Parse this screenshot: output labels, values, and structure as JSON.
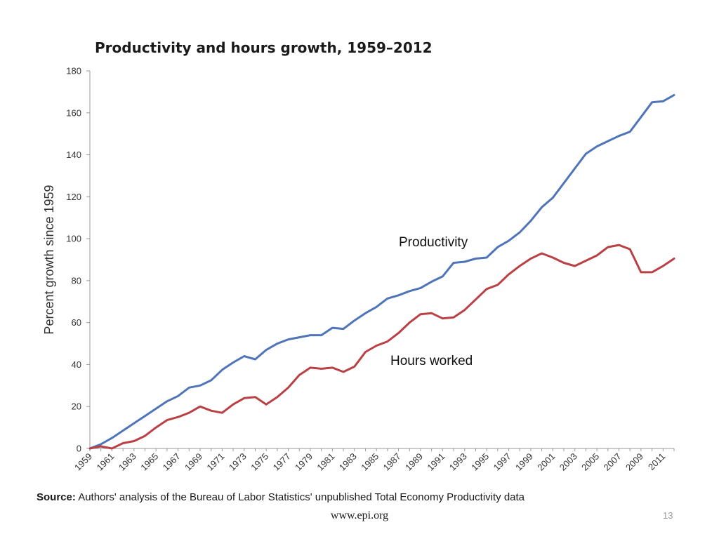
{
  "slide": {
    "source_label": "Source:",
    "source_text": "Authors' analysis of the Bureau of Labor Statistics' unpublished Total Economy Productivity data",
    "url": "www.epi.org",
    "page_number": "13"
  },
  "chart_data": {
    "type": "line",
    "title": "Productivity and hours growth, 1959–2012",
    "xlabel": "",
    "ylabel": "Percent growth since 1959",
    "ylim": [
      0,
      180
    ],
    "yticks": [
      0,
      20,
      40,
      60,
      80,
      100,
      120,
      140,
      160,
      180
    ],
    "xlim": [
      1959,
      2012
    ],
    "xtick_labels": [
      "1959",
      "1961",
      "1963",
      "1965",
      "1967",
      "1969",
      "1971",
      "1973",
      "1975",
      "1977",
      "1979",
      "1981",
      "1983",
      "1985",
      "1987",
      "1989",
      "1991",
      "1993",
      "1995",
      "1997",
      "1999",
      "2001",
      "2003",
      "2005",
      "2007",
      "2009",
      "2011"
    ],
    "grid": false,
    "legend": "none (series labeled directly on chart)",
    "x": [
      1959,
      1960,
      1961,
      1962,
      1963,
      1964,
      1965,
      1966,
      1967,
      1968,
      1969,
      1970,
      1971,
      1972,
      1973,
      1974,
      1975,
      1976,
      1977,
      1978,
      1979,
      1980,
      1981,
      1982,
      1983,
      1984,
      1985,
      1986,
      1987,
      1988,
      1989,
      1990,
      1991,
      1992,
      1993,
      1994,
      1995,
      1996,
      1997,
      1998,
      1999,
      2000,
      2001,
      2002,
      2003,
      2004,
      2005,
      2006,
      2007,
      2008,
      2009,
      2010,
      2011,
      2012
    ],
    "series": [
      {
        "name": "Productivity",
        "color": "#4f74b8",
        "values": [
          0,
          2,
          5,
          8.5,
          12,
          15.5,
          19,
          22.5,
          25,
          29,
          30,
          32.5,
          37.5,
          41,
          44,
          42.5,
          47,
          50,
          52,
          53,
          54,
          54,
          57.5,
          57,
          61,
          64.5,
          67.5,
          71.5,
          73,
          75,
          76.5,
          79.5,
          82,
          88.5,
          89,
          90.5,
          91,
          96,
          99,
          103,
          108.5,
          115,
          119.5,
          126.5,
          133.5,
          140.5,
          144,
          146.5,
          149,
          151,
          158,
          165,
          165.5,
          168.5
        ]
      },
      {
        "name": "Hours worked",
        "color": "#b94045",
        "values": [
          0,
          1,
          0,
          2.5,
          3.5,
          6,
          10,
          13.5,
          15,
          17,
          20,
          18,
          17,
          21,
          24,
          24.5,
          21,
          24.5,
          29,
          35,
          38.5,
          38,
          38.5,
          36.5,
          39,
          46,
          49,
          51,
          55,
          60,
          64,
          64.5,
          62,
          62.5,
          66,
          71,
          76,
          78,
          83,
          87,
          90.5,
          93,
          91,
          88.5,
          87,
          89.5,
          92,
          96,
          97,
          95,
          84,
          84,
          87,
          90.5
        ]
      }
    ]
  }
}
